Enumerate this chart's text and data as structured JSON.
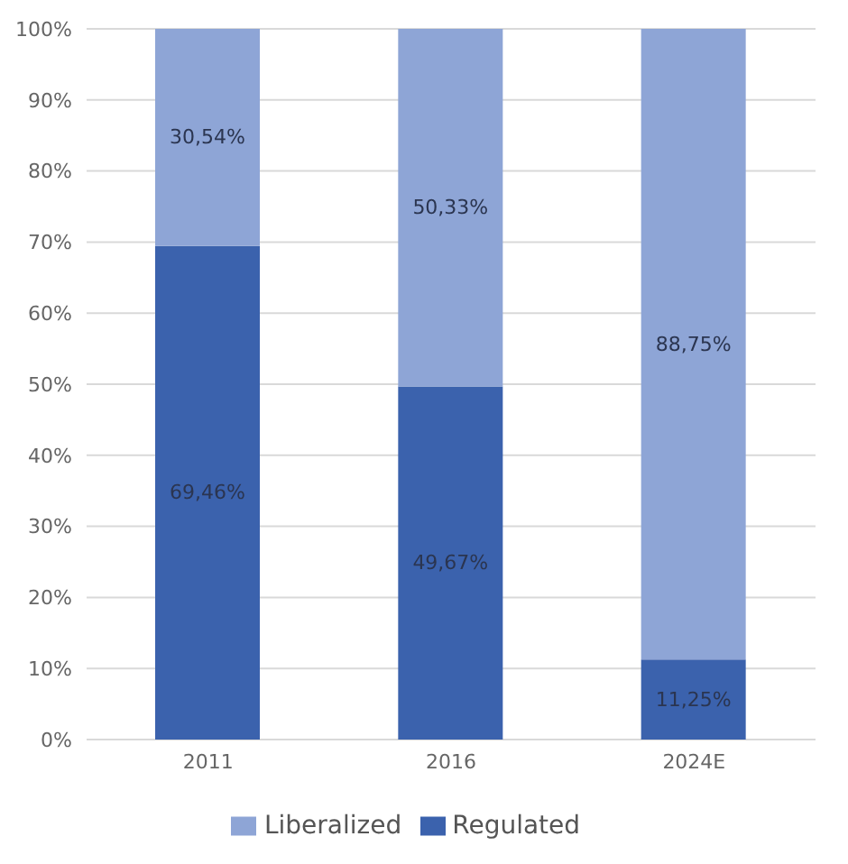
{
  "chart_data": {
    "type": "bar",
    "stacked": true,
    "categories": [
      "2011",
      "2016",
      "2024E"
    ],
    "series": [
      {
        "name": "Regulated",
        "color": "#3b62ad",
        "values": [
          69.46,
          49.67,
          11.25
        ],
        "value_labels": [
          "69,46%",
          "49,67%",
          "11,25%"
        ]
      },
      {
        "name": "Liberalized",
        "color": "#8ea5d6",
        "values": [
          30.54,
          50.33,
          88.75
        ],
        "value_labels": [
          "30,54%",
          "50,33%",
          "88,75%"
        ]
      }
    ],
    "ylim": [
      0,
      100
    ],
    "yticks": [
      {
        "value": 0,
        "label": "0%"
      },
      {
        "value": 10,
        "label": "10%"
      },
      {
        "value": 20,
        "label": "20%"
      },
      {
        "value": 30,
        "label": "30%"
      },
      {
        "value": 40,
        "label": "40%"
      },
      {
        "value": 50,
        "label": "50%"
      },
      {
        "value": 60,
        "label": "60%"
      },
      {
        "value": 70,
        "label": "70%"
      },
      {
        "value": 80,
        "label": "80%"
      },
      {
        "value": 90,
        "label": "90%"
      },
      {
        "value": 100,
        "label": "100%"
      }
    ],
    "grid": "y",
    "legend": "bottom"
  }
}
